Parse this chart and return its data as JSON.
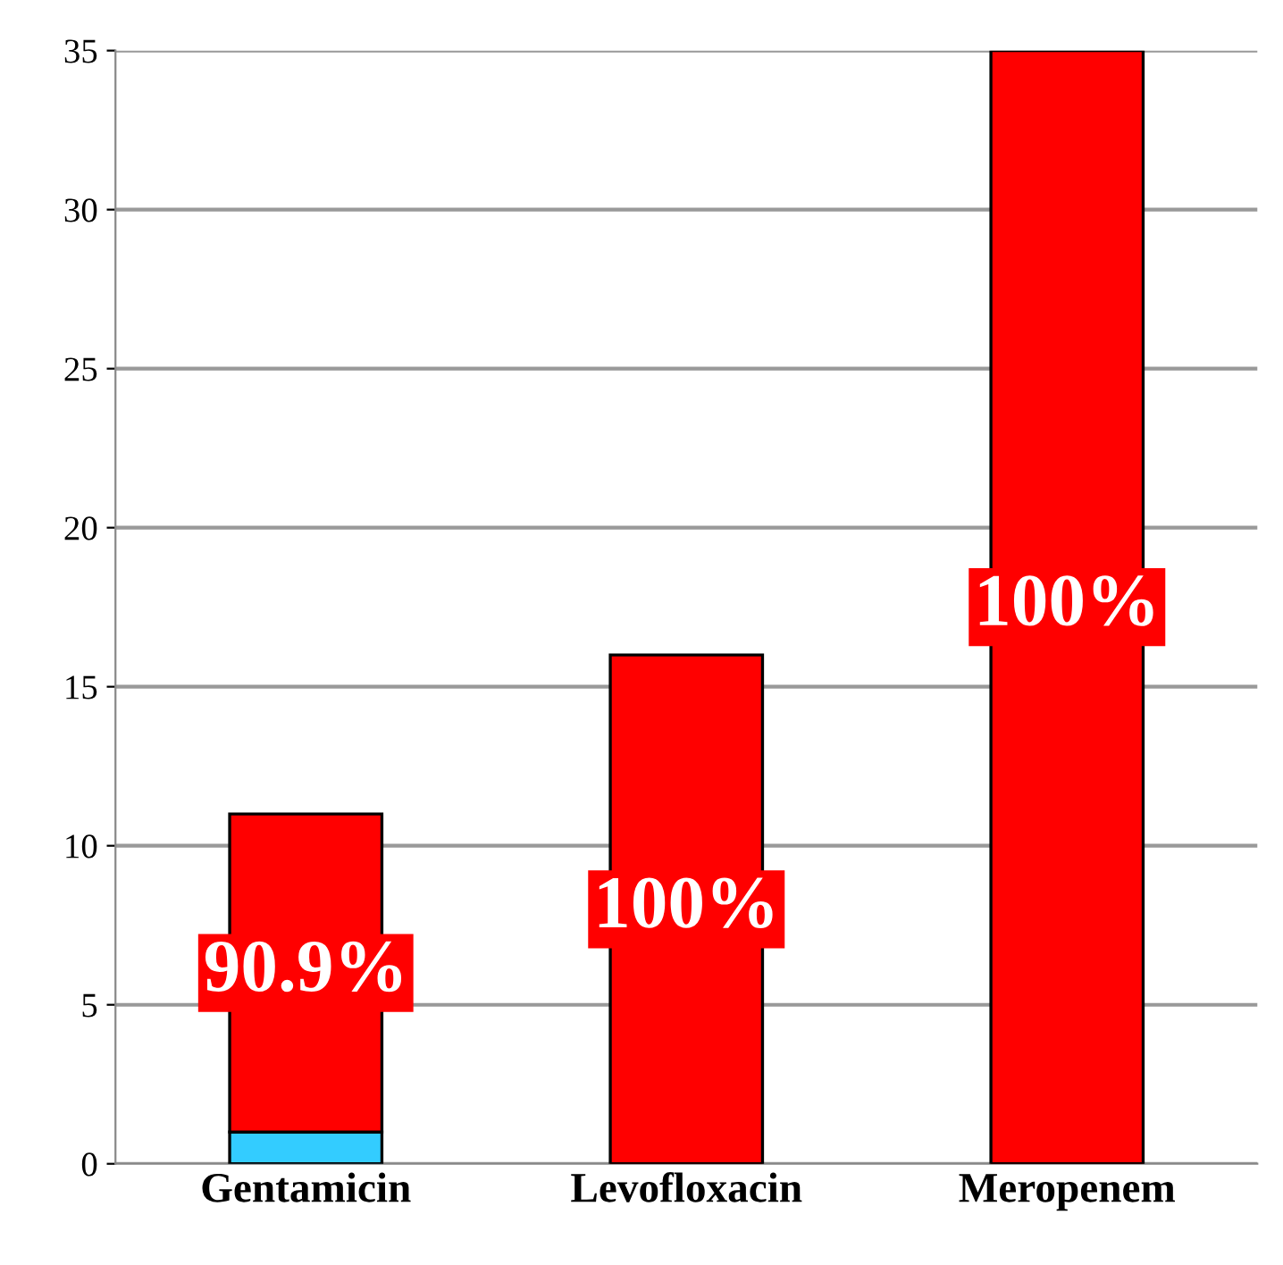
{
  "chart_data": {
    "type": "bar",
    "stacked": true,
    "categories": [
      "Gentamicin",
      "Levofloxacin",
      "Meropenem"
    ],
    "series": [
      {
        "color": "#33ccff",
        "values": [
          1,
          0,
          0
        ]
      },
      {
        "color": "#ff0000",
        "values": [
          10,
          16,
          35
        ]
      }
    ],
    "annotations": [
      "90.9%",
      "100%",
      "100%"
    ],
    "ylim": [
      0,
      35
    ],
    "yticks": [
      0,
      5,
      10,
      15,
      20,
      25,
      30,
      35
    ],
    "grid": "y"
  }
}
